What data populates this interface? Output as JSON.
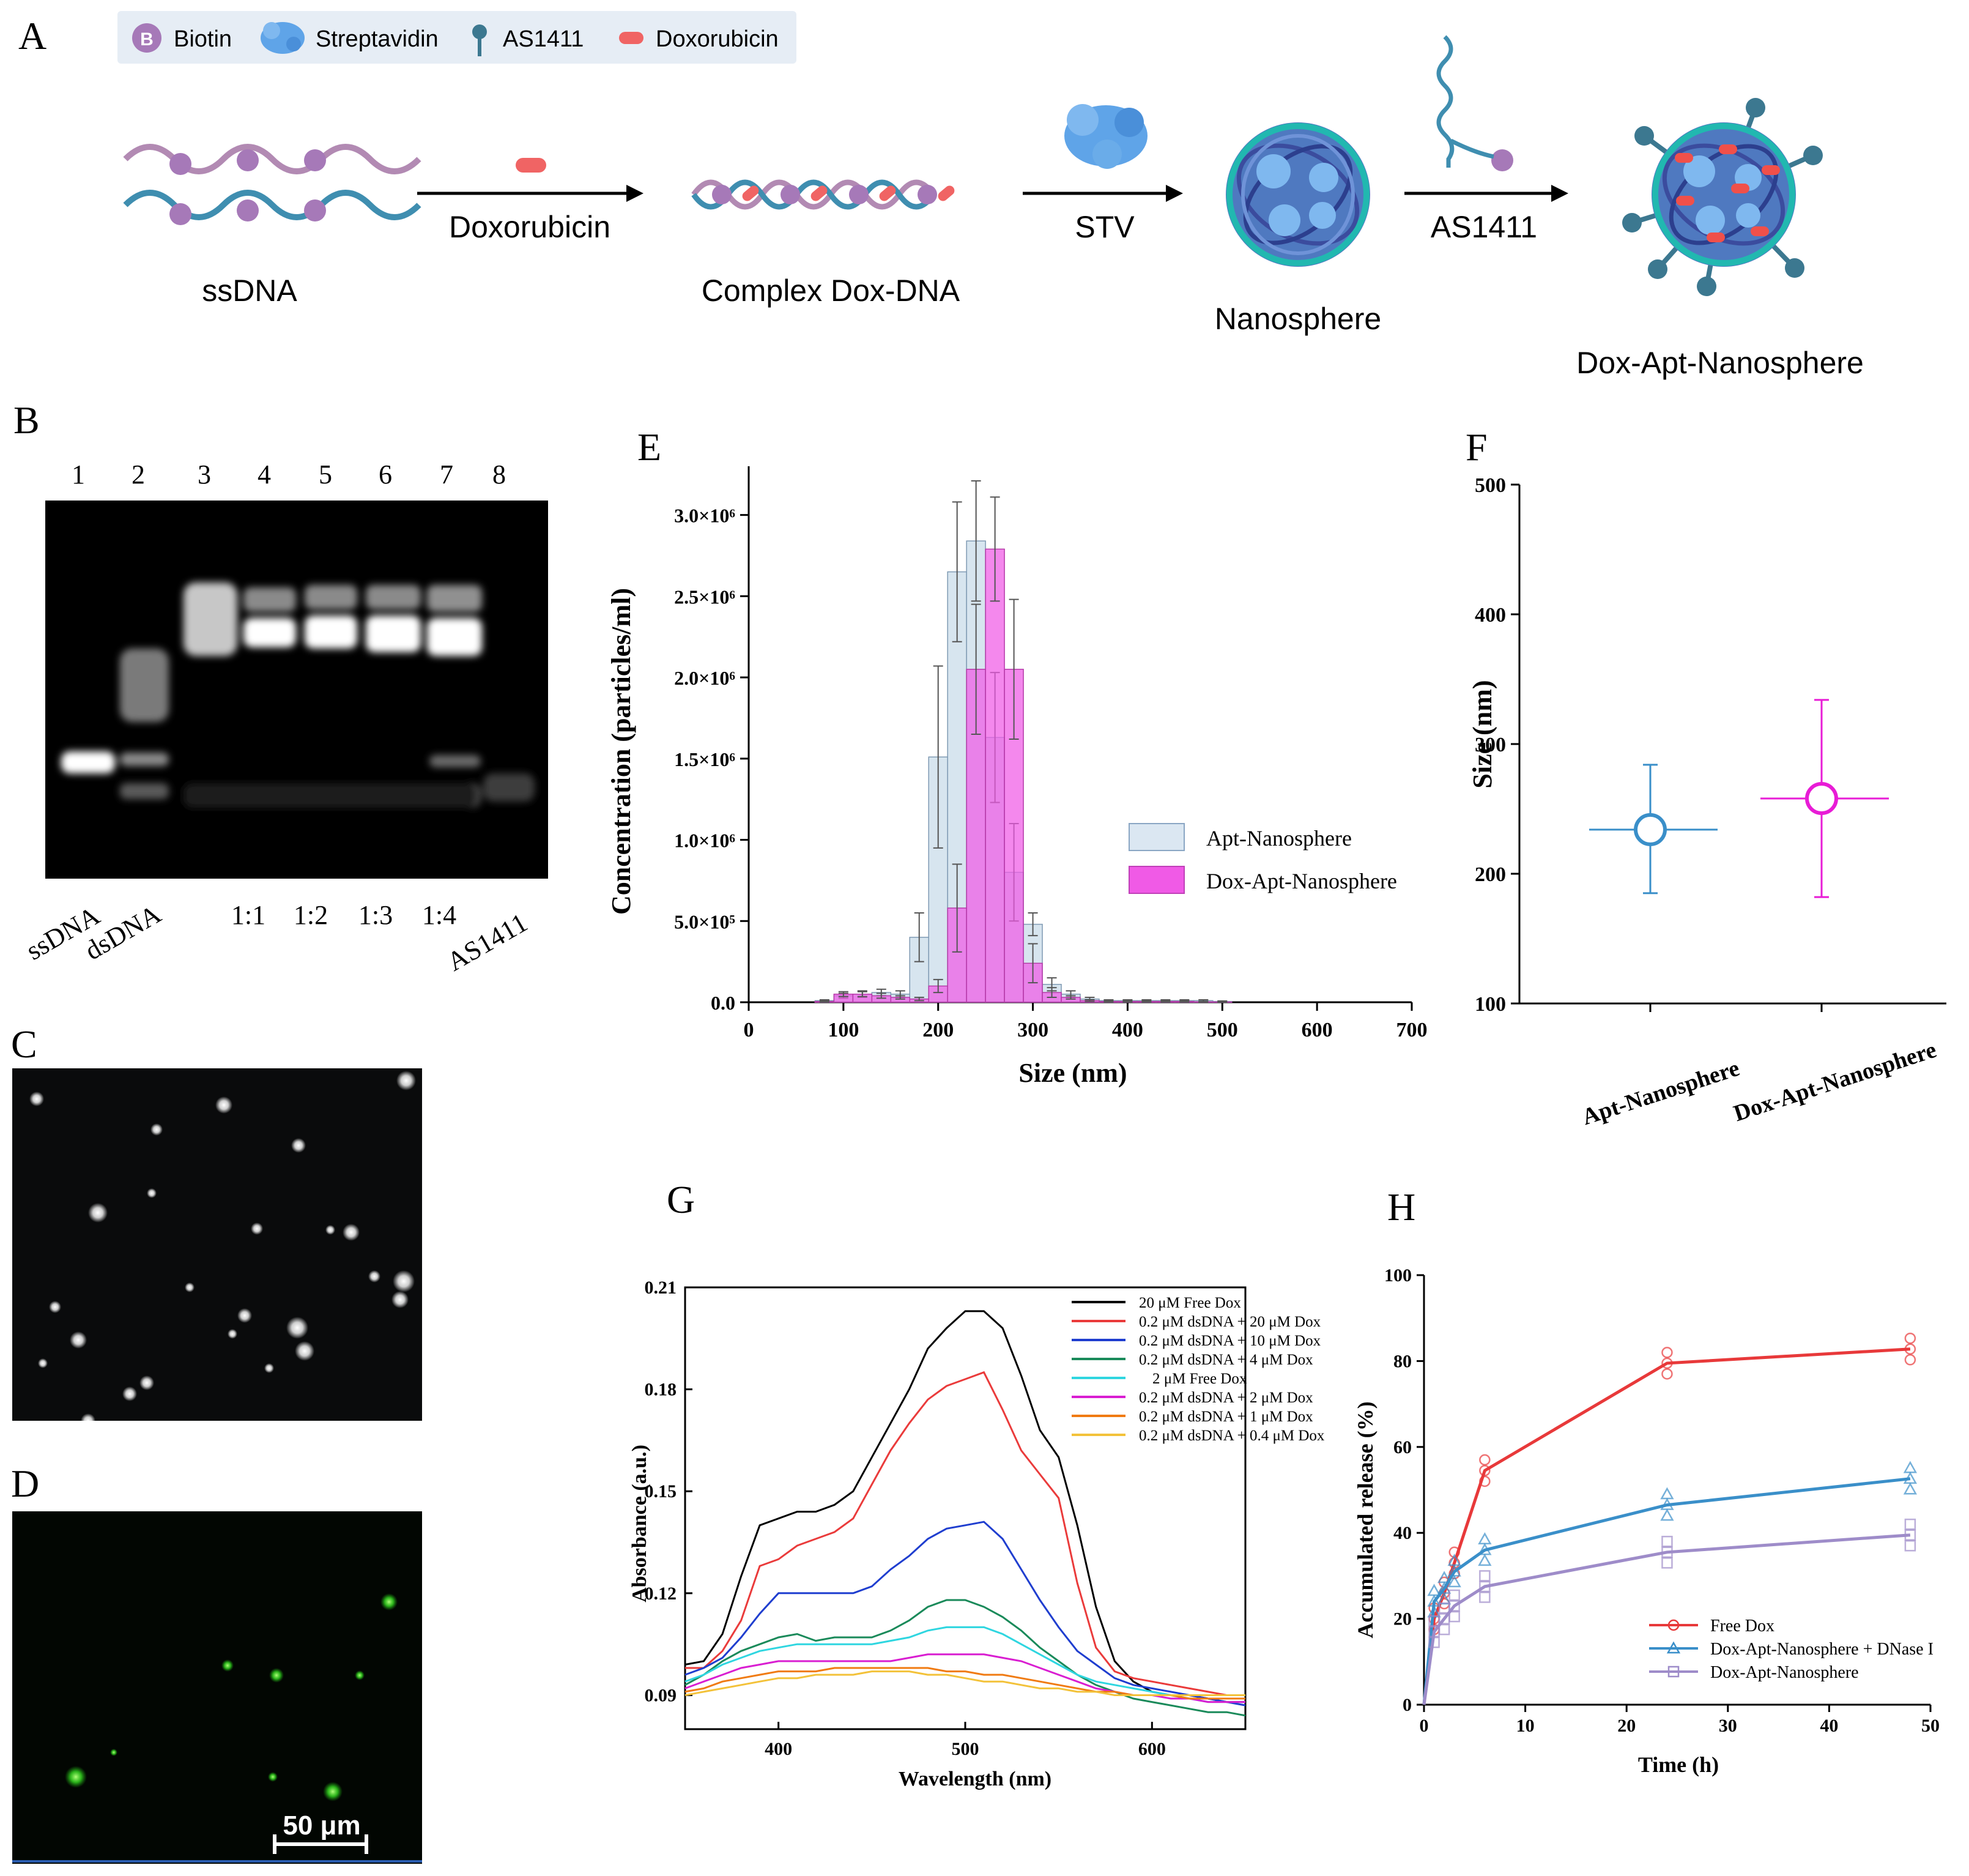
{
  "panel_letters": {
    "a": "A",
    "b": "B",
    "c": "C",
    "d": "D",
    "e": "E",
    "f": "F",
    "g": "G",
    "h": "H"
  },
  "legend_a": {
    "biotin": "Biotin",
    "streptavidin": "Streptavidin",
    "as1411": "AS1411",
    "doxorubicin": "Doxorubicin"
  },
  "scheme": {
    "ssdna": "ssDNA",
    "step1": "Doxorubicin",
    "complex": "Complex Dox-DNA",
    "step2": "STV",
    "nanosphere": "Nanosphere",
    "step3": "AS1411",
    "product": "Dox-Apt-Nanosphere",
    "biotin_glyph": "B"
  },
  "gel": {
    "lane_numbers": [
      "1",
      "2",
      "3",
      "4",
      "5",
      "6",
      "7",
      "8"
    ],
    "lane_labels": [
      "ssDNA",
      "dsDNA",
      "1:1",
      "1:2",
      "1:3",
      "1:4",
      "AS1411"
    ]
  },
  "scale_bar": "50 μm",
  "colors": {
    "apt": "#c9dcea",
    "dox": "#f05ae6",
    "free_dox": "#e8393a",
    "dnase": "#3a8fc9",
    "apt_only": "#9e8cc9",
    "f_apt": "#3a8fc9",
    "f_dox": "#e81cd6"
  },
  "chart_data": [
    {
      "id": "E",
      "type": "bar",
      "xlabel": "Size (nm)",
      "ylabel": "Concentration (particles/ml)",
      "xlim": [
        0,
        700
      ],
      "ylim": [
        0,
        3300000
      ],
      "x_ticks": [
        "0",
        "100",
        "200",
        "300",
        "400",
        "500",
        "600",
        "700"
      ],
      "y_ticks": [
        "0.0",
        "5.0×10⁵",
        "1.0×10⁶",
        "1.5×10⁶",
        "2.0×10⁶",
        "2.5×10⁶",
        "3.0×10⁶"
      ],
      "legend": [
        "Apt-Nanosphere",
        "Dox-Apt-Nanosphere"
      ],
      "series": [
        {
          "name": "Apt-Nanosphere",
          "x": [
            80,
            100,
            120,
            140,
            160,
            180,
            200,
            220,
            240,
            260,
            280,
            300,
            320,
            340,
            360,
            380,
            400,
            420,
            440,
            460,
            480,
            500
          ],
          "values": [
            10000,
            40000,
            50000,
            60000,
            50000,
            400000,
            1510000,
            2650000,
            2840000,
            1630000,
            800000,
            480000,
            110000,
            50000,
            20000,
            10000,
            10000,
            10000,
            10000,
            10000,
            10000,
            5000
          ],
          "err": [
            5000,
            15000,
            20000,
            20000,
            20000,
            150000,
            560000,
            430000,
            370000,
            400000,
            300000,
            70000,
            40000,
            20000,
            10000,
            5000,
            5000,
            5000,
            5000,
            5000,
            5000,
            3000
          ]
        },
        {
          "name": "Dox-Apt-Nanosphere",
          "x": [
            80,
            100,
            120,
            140,
            160,
            180,
            200,
            220,
            240,
            260,
            280,
            300,
            320,
            340,
            360,
            380,
            400,
            420,
            440,
            460,
            480,
            500
          ],
          "values": [
            5000,
            50000,
            50000,
            40000,
            30000,
            20000,
            100000,
            580000,
            2050000,
            2790000,
            2050000,
            240000,
            60000,
            30000,
            10000,
            5000,
            5000,
            5000,
            5000,
            5000,
            3000,
            2000
          ],
          "err": [
            3000,
            15000,
            15000,
            15000,
            10000,
            10000,
            40000,
            270000,
            400000,
            320000,
            430000,
            120000,
            30000,
            10000,
            5000,
            3000,
            3000,
            3000,
            3000,
            3000,
            2000,
            1000
          ]
        }
      ]
    },
    {
      "id": "F",
      "type": "scatter",
      "ylabel": "Size (nm)",
      "ylim": [
        100,
        500
      ],
      "y_ticks": [
        "100",
        "200",
        "300",
        "400",
        "500"
      ],
      "categories": [
        "Apt-Nanosphere",
        "Dox-Apt-Nanosphere"
      ],
      "values": [
        234,
        258
      ],
      "y_low": [
        185,
        182
      ],
      "y_high": [
        284,
        334
      ]
    },
    {
      "id": "G",
      "type": "line",
      "xlabel": "Wavelength (nm)",
      "ylabel": "Absorbance (a.u.)",
      "xlim": [
        350,
        650
      ],
      "ylim": [
        0.08,
        0.21
      ],
      "x_ticks": [
        "400",
        "500",
        "600"
      ],
      "y_ticks": [
        "0.09",
        "0.12",
        "0.15",
        "0.18",
        "0.21"
      ],
      "x": [
        350,
        360,
        370,
        380,
        390,
        400,
        410,
        420,
        430,
        440,
        450,
        460,
        470,
        480,
        490,
        500,
        510,
        520,
        530,
        540,
        550,
        560,
        570,
        580,
        590,
        600,
        610,
        620,
        630,
        640,
        650
      ],
      "series": [
        {
          "name": "20 μM Free Dox",
          "color": "#000000",
          "values": [
            0.099,
            0.1,
            0.108,
            0.125,
            0.14,
            0.142,
            0.144,
            0.144,
            0.146,
            0.15,
            0.16,
            0.17,
            0.18,
            0.192,
            0.198,
            0.203,
            0.203,
            0.198,
            0.184,
            0.168,
            0.16,
            0.14,
            0.116,
            0.1,
            0.094,
            0.091,
            0.09,
            0.09,
            0.089,
            0.088,
            0.088
          ]
        },
        {
          "name": "0.2 μM dsDNA + 20 μM Dox",
          "color": "#ea3b3b",
          "values": [
            0.098,
            0.098,
            0.103,
            0.112,
            0.128,
            0.13,
            0.134,
            0.136,
            0.138,
            0.142,
            0.152,
            0.162,
            0.17,
            0.177,
            0.181,
            0.183,
            0.185,
            0.174,
            0.162,
            0.155,
            0.148,
            0.123,
            0.104,
            0.097,
            0.095,
            0.094,
            0.093,
            0.092,
            0.091,
            0.09,
            0.09
          ]
        },
        {
          "name": "0.2 μM dsDNA + 10 μM Dox",
          "color": "#1f3ecf",
          "values": [
            0.096,
            0.098,
            0.101,
            0.107,
            0.114,
            0.12,
            0.12,
            0.12,
            0.12,
            0.12,
            0.122,
            0.127,
            0.131,
            0.136,
            0.139,
            0.14,
            0.141,
            0.136,
            0.127,
            0.118,
            0.11,
            0.103,
            0.099,
            0.095,
            0.093,
            0.092,
            0.091,
            0.09,
            0.089,
            0.088,
            0.087
          ]
        },
        {
          "name": "0.2 μM dsDNA +  4 μM Dox",
          "color": "#1a8a5a",
          "values": [
            0.093,
            0.096,
            0.1,
            0.103,
            0.105,
            0.107,
            0.108,
            0.106,
            0.107,
            0.107,
            0.107,
            0.109,
            0.112,
            0.116,
            0.118,
            0.118,
            0.116,
            0.113,
            0.109,
            0.104,
            0.1,
            0.096,
            0.093,
            0.091,
            0.089,
            0.088,
            0.087,
            0.086,
            0.085,
            0.085,
            0.084
          ]
        },
        {
          "name": "2 μM Free Dox",
          "color": "#2fd6e0",
          "values": [
            0.094,
            0.096,
            0.099,
            0.101,
            0.103,
            0.104,
            0.105,
            0.105,
            0.105,
            0.105,
            0.105,
            0.106,
            0.107,
            0.109,
            0.11,
            0.11,
            0.11,
            0.108,
            0.105,
            0.102,
            0.099,
            0.096,
            0.094,
            0.093,
            0.092,
            0.091,
            0.09,
            0.089,
            0.088,
            0.088,
            0.088
          ]
        },
        {
          "name": "0.2 μM dsDNA + 2 μM Dox",
          "color": "#d91ed1",
          "values": [
            0.092,
            0.094,
            0.096,
            0.098,
            0.099,
            0.1,
            0.1,
            0.1,
            0.1,
            0.1,
            0.1,
            0.1,
            0.101,
            0.102,
            0.102,
            0.102,
            0.102,
            0.101,
            0.1,
            0.098,
            0.096,
            0.094,
            0.092,
            0.091,
            0.09,
            0.09,
            0.089,
            0.089,
            0.088,
            0.088,
            0.088
          ]
        },
        {
          "name": "0.2 μM dsDNA + 1 μM Dox",
          "color": "#f07b12",
          "values": [
            0.091,
            0.092,
            0.094,
            0.095,
            0.096,
            0.097,
            0.097,
            0.097,
            0.098,
            0.098,
            0.098,
            0.098,
            0.098,
            0.098,
            0.097,
            0.097,
            0.096,
            0.096,
            0.095,
            0.094,
            0.093,
            0.092,
            0.091,
            0.091,
            0.09,
            0.09,
            0.09,
            0.089,
            0.089,
            0.089,
            0.089
          ]
        },
        {
          "name": "0.2 μM dsDNA + 0.4 μM Dox",
          "color": "#f3c23a",
          "values": [
            0.09,
            0.091,
            0.092,
            0.093,
            0.094,
            0.095,
            0.095,
            0.096,
            0.096,
            0.096,
            0.097,
            0.097,
            0.097,
            0.096,
            0.096,
            0.095,
            0.094,
            0.094,
            0.093,
            0.092,
            0.092,
            0.091,
            0.091,
            0.09,
            0.09,
            0.09,
            0.09,
            0.09,
            0.09,
            0.09,
            0.09
          ]
        }
      ]
    },
    {
      "id": "H",
      "type": "line",
      "xlabel": "Time (h)",
      "ylabel": "Accumulated release (%)",
      "xlim": [
        0,
        50
      ],
      "ylim": [
        0,
        100
      ],
      "x_ticks": [
        "0",
        "10",
        "20",
        "30",
        "40",
        "50"
      ],
      "y_ticks": [
        "0",
        "20",
        "40",
        "60",
        "80",
        "100"
      ],
      "x": [
        0,
        1,
        2,
        3,
        6,
        24,
        48
      ],
      "series": [
        {
          "name": "Free Dox",
          "color": "#e8393a",
          "values": [
            0,
            20,
            26,
            33,
            54.5,
            79.5,
            82.8
          ]
        },
        {
          "name": "Dox-Apt-Nanosphere + DNase I",
          "color": "#3a8fc9",
          "values": [
            0,
            24,
            27,
            31,
            36,
            46.5,
            52.6
          ]
        },
        {
          "name": "Dox-Apt-Nanosphere",
          "color": "#9e8cc9",
          "values": [
            0,
            17,
            20,
            23,
            27.5,
            35.5,
            39.5
          ]
        }
      ]
    }
  ]
}
